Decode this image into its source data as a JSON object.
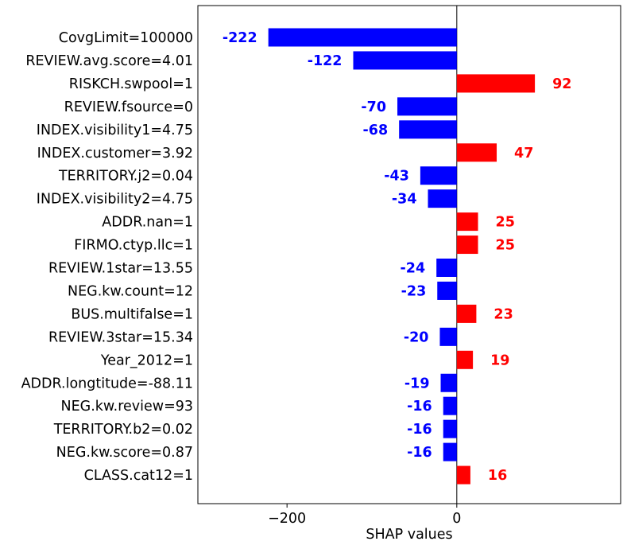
{
  "chart_data": {
    "type": "bar",
    "orientation": "horizontal",
    "title": "",
    "xlabel": "SHAP values",
    "ylabel": "",
    "xlim": [
      -305,
      193
    ],
    "xticks": [
      -200,
      0
    ],
    "xtick_labels": [
      "−200",
      "0"
    ],
    "grid": false,
    "zero_line": true,
    "colors": {
      "positive": "#ff0000",
      "negative": "#0000ff"
    },
    "categories": [
      "CovgLimit=100000",
      "REVIEW.avg.score=4.01",
      "RISKCH.swpool=1",
      "REVIEW.fsource=0",
      "INDEX.visibility1=4.75",
      "INDEX.customer=3.92",
      "TERRITORY.j2=0.04",
      "INDEX.visibility2=4.75",
      "ADDR.nan=1",
      "FIRMO.ctyp.llc=1",
      "REVIEW.1star=13.55",
      "NEG.kw.count=12",
      "BUS.multifalse=1",
      "REVIEW.3star=15.34",
      "Year_2012=1",
      "ADDR.longtitude=-88.11",
      "NEG.kw.review=93",
      "TERRITORY.b2=0.02",
      "NEG.kw.score=0.87",
      "CLASS.cat12=1"
    ],
    "values": [
      -222,
      -122,
      92,
      -70,
      -68,
      47,
      -43,
      -34,
      25,
      25,
      -24,
      -23,
      23,
      -20,
      19,
      -19,
      -16,
      -16,
      -16,
      16
    ],
    "value_labels": [
      "-222",
      "-122",
      "92",
      "-70",
      "-68",
      "47",
      "-43",
      "-34",
      "25",
      "25",
      "-24",
      "-23",
      "23",
      "-20",
      "19",
      "-19",
      "-16",
      "-16",
      "-16",
      "16"
    ]
  }
}
